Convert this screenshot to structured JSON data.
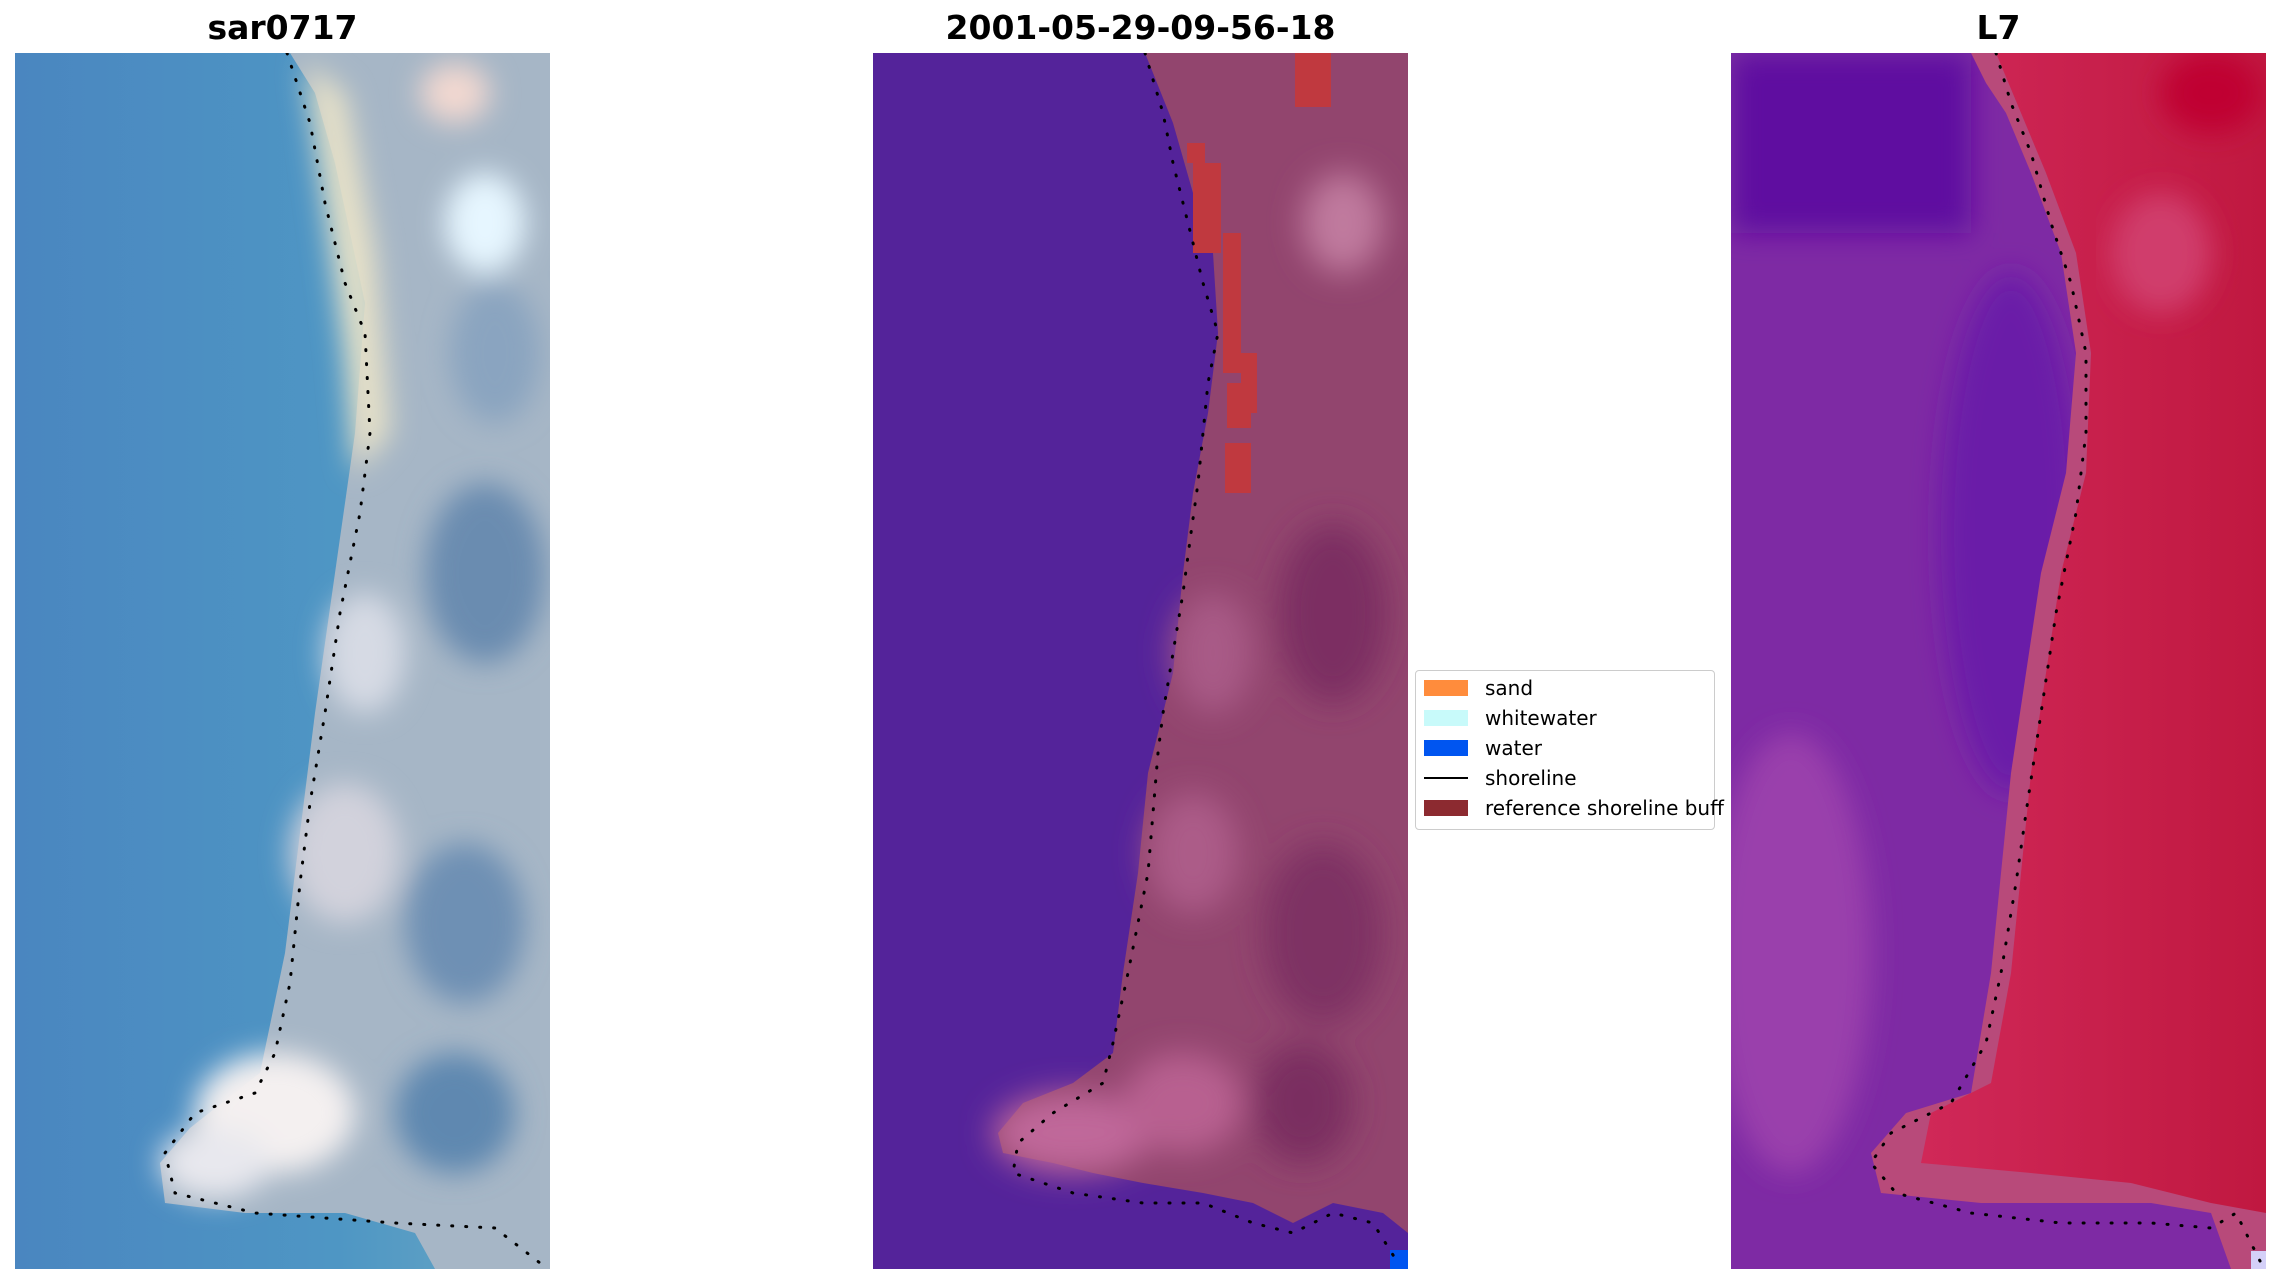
{
  "titles": {
    "left": "sar0717",
    "middle": "2001-05-29-09-56-18",
    "right": "L7"
  },
  "legend": {
    "items": [
      {
        "label": "sand",
        "color": "#ff8c3c",
        "kind": "patch"
      },
      {
        "label": "whitewater",
        "color": "#c8fafa",
        "kind": "patch"
      },
      {
        "label": "water",
        "color": "#0055f0",
        "kind": "patch"
      },
      {
        "label": "shoreline",
        "color": "#000000",
        "kind": "line"
      },
      {
        "label": "reference shoreline buff",
        "color": "#8c2a30",
        "kind": "patch"
      }
    ]
  },
  "colors": {
    "sea_rgb": "#4a8cc0",
    "land_rgb": "#a8b8c8",
    "classified_water": "#54239a",
    "classified_land": "#92456e",
    "reference_buffer": "#c0393f",
    "ratio_sea": "#7a2aa6",
    "ratio_land": "#cc1c52"
  }
}
